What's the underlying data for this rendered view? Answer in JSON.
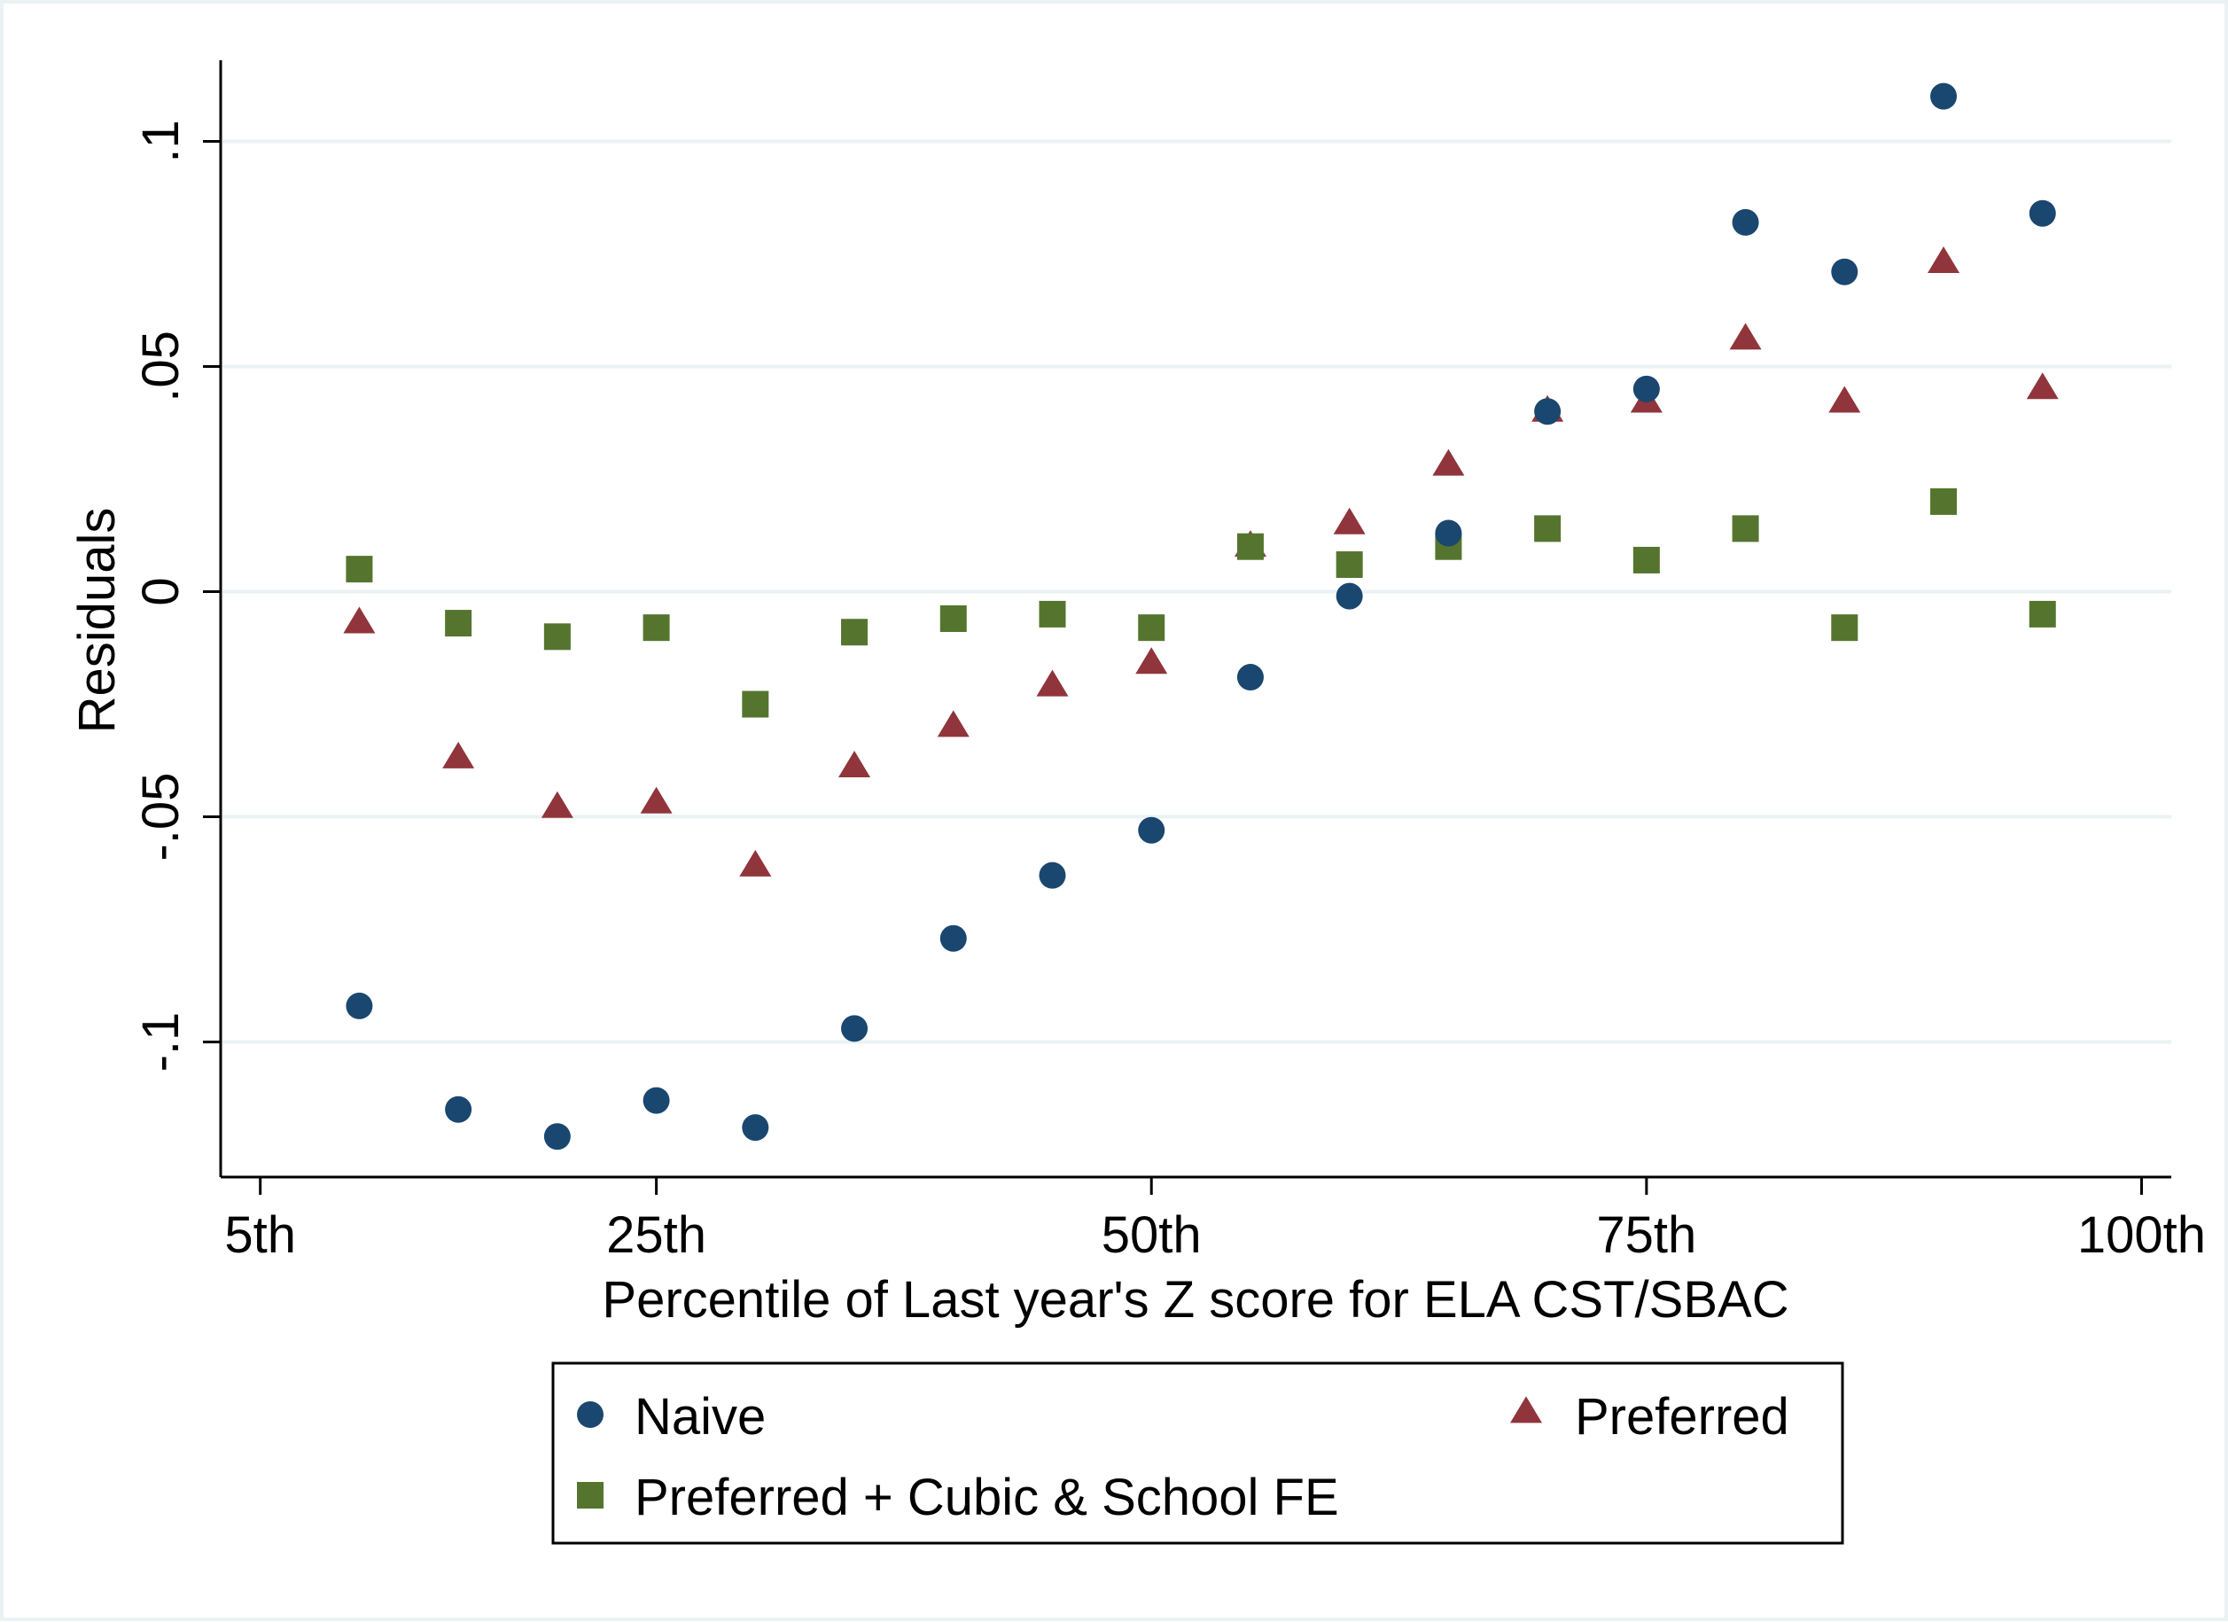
{
  "chart_data": {
    "type": "scatter",
    "title": "",
    "xlabel": "Percentile of Last year's Z score for ELA CST/SBAC",
    "ylabel": "Residuals",
    "xlim": [
      3,
      101.5
    ],
    "ylim": [
      -0.13,
      0.118
    ],
    "x_ticks": [
      {
        "value": 5,
        "label": "5th"
      },
      {
        "value": 25,
        "label": "25th"
      },
      {
        "value": 50,
        "label": "50th"
      },
      {
        "value": 75,
        "label": "75th"
      },
      {
        "value": 100,
        "label": "100th"
      }
    ],
    "y_ticks": [
      {
        "value": -0.1,
        "label": "-.1"
      },
      {
        "value": -0.05,
        "label": "-.05"
      },
      {
        "value": 0,
        "label": "0"
      },
      {
        "value": 0.05,
        "label": ".05"
      },
      {
        "value": 0.1,
        "label": ".1"
      }
    ],
    "grid": "horizontal",
    "legend_position": "bottom",
    "x": [
      10,
      15,
      20,
      25,
      30,
      35,
      40,
      45,
      50,
      55,
      60,
      65,
      70,
      75,
      80,
      85,
      90,
      95
    ],
    "series": [
      {
        "name": "Naive",
        "marker": "circle",
        "color": "#1a476f",
        "values": [
          -0.092,
          -0.115,
          -0.121,
          -0.113,
          -0.119,
          -0.097,
          -0.077,
          -0.063,
          -0.053,
          -0.019,
          -0.001,
          0.013,
          0.04,
          0.045,
          0.082,
          0.071,
          0.11,
          0.084
        ]
      },
      {
        "name": "Preferred",
        "marker": "triangle",
        "color": "#90353b",
        "values": [
          -0.007,
          -0.037,
          -0.048,
          -0.047,
          -0.061,
          -0.039,
          -0.03,
          -0.021,
          -0.016,
          0.01,
          0.015,
          0.028,
          0.04,
          0.042,
          0.056,
          0.042,
          0.073,
          0.045
        ]
      },
      {
        "name": "Preferred + Cubic & School FE",
        "marker": "square",
        "color": "#55752f",
        "values": [
          0.005,
          -0.007,
          -0.01,
          -0.008,
          -0.025,
          -0.009,
          -0.006,
          -0.005,
          -0.008,
          0.01,
          0.006,
          0.01,
          0.014,
          0.007,
          0.014,
          -0.008,
          0.02,
          -0.005
        ]
      }
    ]
  },
  "legend": {
    "items": [
      {
        "label": "Naive",
        "marker": "circle",
        "color": "#1a476f"
      },
      {
        "label": "Preferred",
        "marker": "triangle",
        "color": "#90353b"
      },
      {
        "label": "Preferred + Cubic & School FE",
        "marker": "square",
        "color": "#55752f"
      }
    ]
  }
}
